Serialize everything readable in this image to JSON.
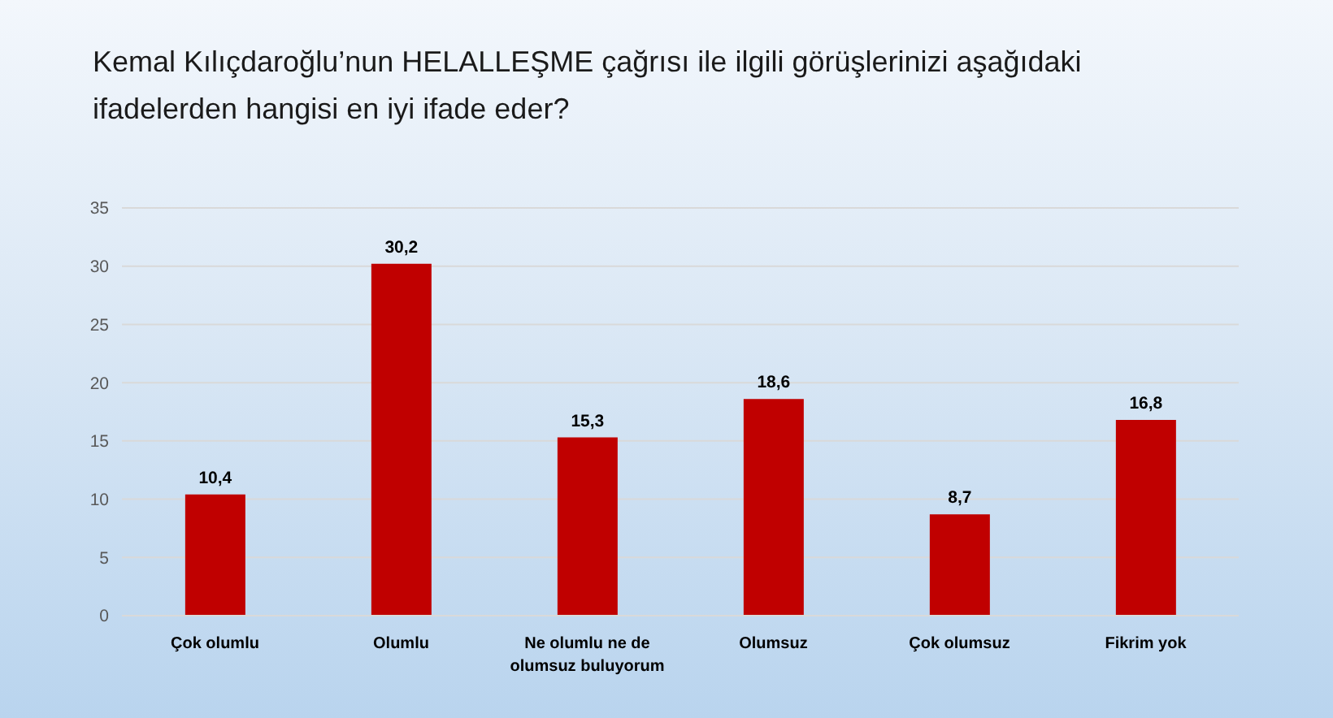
{
  "chart_data": {
    "type": "bar",
    "title": "Kemal Kılıçdaroğlu’nun HELALLEŞME çağrısı ile ilgili görüşlerinizi aşağıdaki ifadelerden hangisi en iyi ifade eder?",
    "categories": [
      "Çok olumlu",
      "Olumlu",
      "Ne olumlu ne de olumsuz buluyorum",
      "Olumsuz",
      "Çok olumsuz",
      "Fikrim yok"
    ],
    "values": [
      10.4,
      30.2,
      15.3,
      18.6,
      8.7,
      16.8
    ],
    "value_labels": [
      "10,4",
      "30,2",
      "15,3",
      "18,6",
      "8,7",
      "16,8"
    ],
    "color": "#c00000",
    "ylim": [
      0,
      35
    ],
    "yticks": [
      0,
      5,
      10,
      15,
      20,
      25,
      30,
      35
    ],
    "grid": "y"
  }
}
